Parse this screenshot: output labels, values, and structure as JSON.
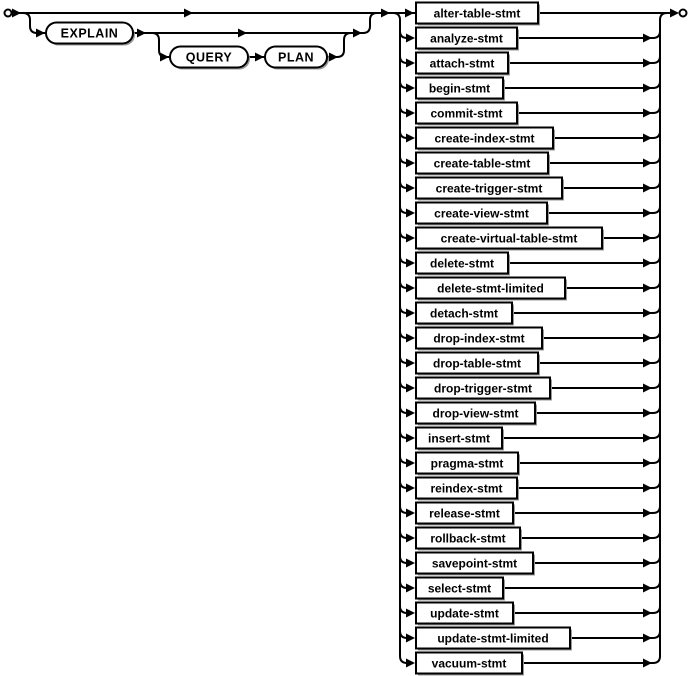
{
  "diagram": {
    "kind": "railroad-syntax-diagram",
    "keywords": [
      "EXPLAIN",
      "QUERY",
      "PLAN"
    ],
    "statements": [
      "alter-table-stmt",
      "analyze-stmt",
      "attach-stmt",
      "begin-stmt",
      "commit-stmt",
      "create-index-stmt",
      "create-table-stmt",
      "create-trigger-stmt",
      "create-view-stmt",
      "create-virtual-table-stmt",
      "delete-stmt",
      "delete-stmt-limited",
      "detach-stmt",
      "drop-index-stmt",
      "drop-table-stmt",
      "drop-trigger-stmt",
      "drop-view-stmt",
      "insert-stmt",
      "pragma-stmt",
      "reindex-stmt",
      "release-stmt",
      "rollback-stmt",
      "savepoint-stmt",
      "select-stmt",
      "update-stmt",
      "update-stmt-limited",
      "vacuum-stmt"
    ],
    "colors": {
      "line": "#000000",
      "box_fill": "#ffffff",
      "box_border": "#000000",
      "shadow": "#999999",
      "background": "#ffffff"
    }
  }
}
